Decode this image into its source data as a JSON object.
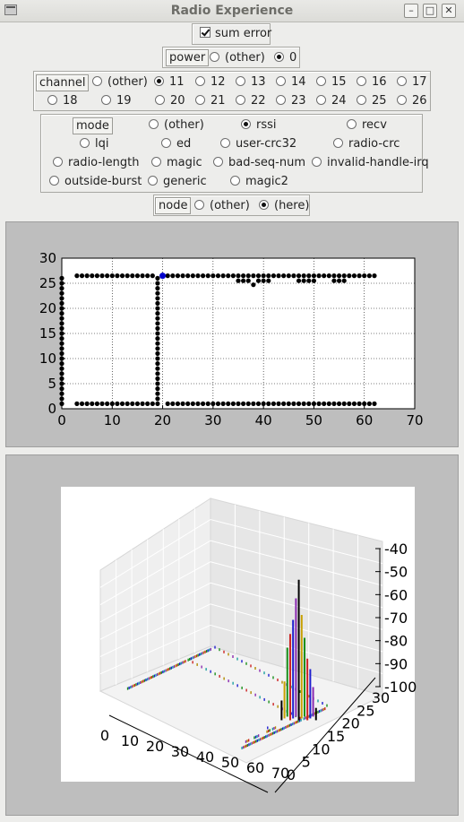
{
  "window": {
    "title": "Radio Experience"
  },
  "sum_error": {
    "label": "sum error",
    "checked": true
  },
  "power": {
    "label": "power",
    "options": [
      "(other)",
      "0"
    ],
    "selected": "0"
  },
  "channel": {
    "label": "channel",
    "options": [
      "(other)",
      "11",
      "12",
      "13",
      "14",
      "15",
      "16",
      "17",
      "18",
      "19",
      "20",
      "21",
      "22",
      "23",
      "24",
      "25",
      "26"
    ],
    "selected": "11"
  },
  "mode": {
    "label": "mode",
    "options": [
      "(other)",
      "rssi",
      "recv",
      "lqi",
      "ed",
      "user-crc32",
      "radio-crc",
      "radio-length",
      "magic",
      "bad-seq-num",
      "invalid-handle-irq",
      "outside-burst",
      "generic",
      "magic2"
    ],
    "selected": "rssi"
  },
  "node": {
    "label": "node",
    "options": [
      "(other)",
      "(here)"
    ],
    "selected": "(here)"
  },
  "plot2d": {
    "x_ticks": [
      "0",
      "10",
      "20",
      "30",
      "40",
      "50",
      "60",
      "70"
    ],
    "y_ticks": [
      "0",
      "5",
      "10",
      "15",
      "20",
      "25",
      "30"
    ],
    "marker_color": "#000000",
    "highlight_color": "#0000cc"
  },
  "plot3d": {
    "x_ticks": [
      "0",
      "10",
      "20",
      "30",
      "40",
      "50",
      "60",
      "70"
    ],
    "y_ticks": [
      "0",
      "5",
      "10",
      "15",
      "20",
      "25",
      "30"
    ],
    "z_ticks": [
      "-40",
      "-50",
      "-60",
      "-70",
      "-80",
      "-90",
      "-100"
    ]
  },
  "chart_data": [
    {
      "type": "scatter",
      "title": "",
      "xlabel": "",
      "ylabel": "",
      "xlim": [
        0,
        70
      ],
      "ylim": [
        0,
        30
      ],
      "grid": true,
      "series": [
        {
          "x": [
            0,
            0,
            0,
            0,
            0,
            0,
            0,
            0,
            0,
            0,
            0,
            0,
            0,
            0,
            0,
            0,
            0,
            0,
            0,
            0,
            0,
            0,
            0,
            0,
            0,
            0
          ],
          "y": [
            1,
            2,
            3,
            4,
            5,
            6,
            7,
            8,
            9,
            10,
            11,
            12,
            13,
            14,
            15,
            16,
            17,
            18,
            19,
            20,
            21,
            22,
            23,
            24,
            25,
            26
          ]
        },
        {
          "x": [
            19,
            19,
            19,
            19,
            19,
            19,
            19,
            19,
            19,
            19,
            19,
            19,
            19,
            19,
            19,
            19,
            19,
            19,
            19,
            19,
            19,
            19,
            19,
            19,
            19,
            19
          ],
          "y": [
            1,
            2,
            3,
            4,
            5,
            6,
            7,
            8,
            9,
            10,
            11,
            12,
            13,
            14,
            15,
            16,
            17,
            18,
            19,
            20,
            21,
            22,
            23,
            24,
            25,
            26
          ]
        },
        {
          "x": [
            3,
            4,
            5,
            6,
            7,
            8,
            9,
            10,
            11,
            12,
            13,
            14,
            15,
            16,
            17,
            18,
            21,
            22,
            23,
            24,
            25,
            26,
            27,
            28,
            29,
            30,
            31,
            32,
            33,
            34,
            35,
            36,
            37,
            38,
            39,
            40,
            41,
            42,
            43,
            44,
            45,
            46,
            47,
            48,
            49,
            50,
            51,
            52,
            53,
            54,
            55,
            56,
            57,
            58,
            59,
            60,
            61,
            62
          ],
          "y": [
            26.5,
            26.5,
            26.5,
            26.5,
            26.5,
            26.5,
            26.5,
            26.5,
            26.5,
            26.5,
            26.5,
            26.5,
            26.5,
            26.5,
            26.5,
            26.5,
            26.5,
            26.5,
            26.5,
            26.5,
            26.5,
            26.5,
            26.5,
            26.5,
            26.5,
            26.5,
            26.5,
            26.5,
            26.5,
            26.5,
            26.5,
            26.5,
            26.5,
            26.5,
            26.5,
            26.5,
            26.5,
            26.5,
            26.5,
            26.5,
            26.5,
            26.5,
            26.5,
            26.5,
            26.5,
            26.5,
            26.5,
            26.5,
            26.5,
            26.5,
            26.5,
            26.5,
            26.5,
            26.5,
            26.5,
            26.5,
            26.5,
            26.5
          ]
        },
        {
          "x": [
            35,
            36,
            37,
            38,
            39,
            40,
            41,
            47,
            48,
            49,
            50,
            54,
            55,
            56
          ],
          "y": [
            25.5,
            25.5,
            25.5,
            24.7,
            25.5,
            25.5,
            25.5,
            25.5,
            25.5,
            25.5,
            25.5,
            25.5,
            25.5,
            25.5
          ]
        },
        {
          "x": [
            3,
            4,
            5,
            6,
            7,
            8,
            9,
            10,
            11,
            12,
            13,
            14,
            15,
            16,
            17,
            18,
            21,
            22,
            23,
            24,
            25,
            26,
            27,
            28,
            29,
            30,
            31,
            32,
            33,
            34,
            35,
            36,
            37,
            38,
            39,
            40,
            41,
            42,
            43,
            44,
            45,
            46,
            47,
            48,
            49,
            50,
            51,
            52,
            53,
            54,
            55,
            56,
            57,
            58,
            59,
            60,
            61,
            62
          ],
          "y": [
            1,
            1,
            1,
            1,
            1,
            1,
            1,
            1,
            1,
            1,
            1,
            1,
            1,
            1,
            1,
            1,
            1,
            1,
            1,
            1,
            1,
            1,
            1,
            1,
            1,
            1,
            1,
            1,
            1,
            1,
            1,
            1,
            1,
            1,
            1,
            1,
            1,
            1,
            1,
            1,
            1,
            1,
            1,
            1,
            1,
            1,
            1,
            1,
            1,
            1,
            1,
            1,
            1,
            1,
            1,
            1,
            1,
            1
          ]
        },
        {
          "x": [
            20
          ],
          "y": [
            26.5
          ]
        }
      ]
    },
    {
      "type": "bar",
      "title": "",
      "xlabel": "",
      "ylabel": "",
      "xlim": [
        0,
        70
      ],
      "ylim": [
        0,
        30
      ],
      "zlim": [
        -100,
        -40
      ],
      "series": [
        {
          "x": [
            20,
            20,
            20,
            20,
            20,
            20,
            20,
            20,
            20,
            20,
            20,
            20,
            20
          ],
          "y": [
            26,
            26,
            26,
            26,
            26,
            26,
            26,
            26,
            26,
            26,
            26,
            26,
            26
          ],
          "z": [
            -92,
            -85,
            -72,
            -65,
            -60,
            -52,
            -43,
            -58,
            -68,
            -75,
            -80,
            -88,
            -95
          ]
        }
      ]
    }
  ]
}
